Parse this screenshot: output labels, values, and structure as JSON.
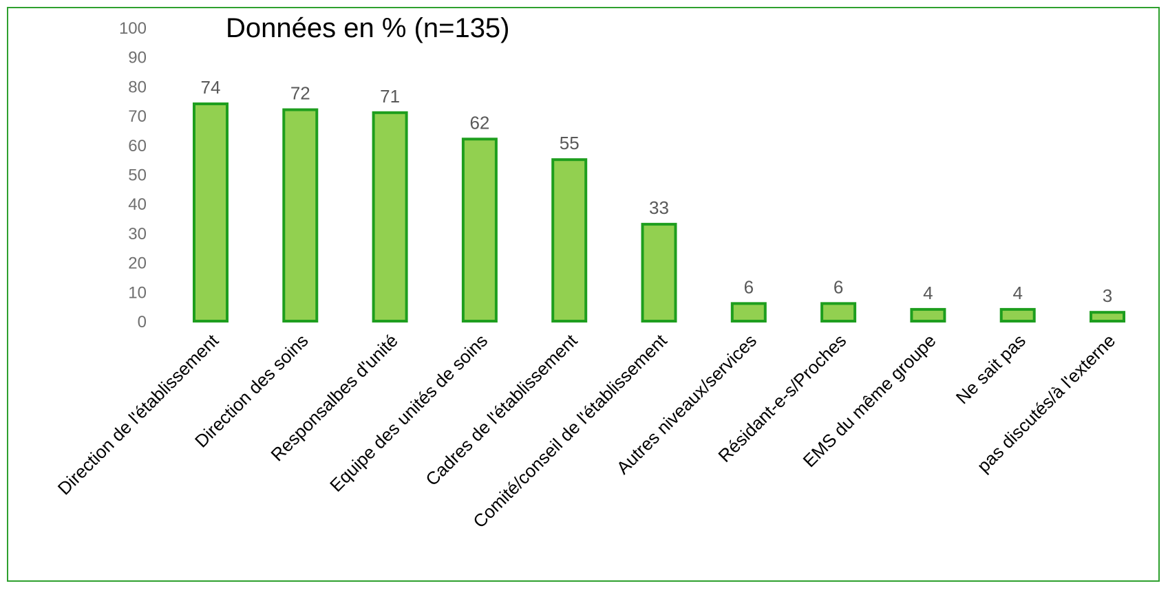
{
  "chart_data": {
    "type": "bar",
    "title": "Données en % (n=135)",
    "categories": [
      "Direction de l'établissement",
      "Direction des soins",
      "Responsalbes d'unité",
      "Equipe des unités de soins",
      "Cadres de l'établissement",
      "Comité/conseil de l'établissement",
      "Autres niveaux/services",
      "Résidant-e-s/Proches",
      "EMS du même groupe",
      "Ne sait pas",
      "pas discutés/à l'externe"
    ],
    "values": [
      74,
      72,
      71,
      62,
      55,
      33,
      6,
      6,
      4,
      4,
      3
    ],
    "ylim": [
      0,
      100
    ],
    "yticks": [
      0,
      10,
      20,
      30,
      40,
      50,
      60,
      70,
      80,
      90,
      100
    ],
    "grid": false,
    "data_labels": true,
    "colors": {
      "bar_fill": "#92d050",
      "bar_stroke": "#1e9e1e",
      "frame": "#2ea02e"
    }
  }
}
